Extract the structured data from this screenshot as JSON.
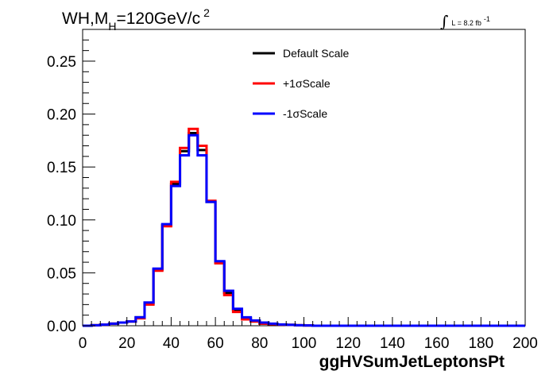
{
  "chart_data": {
    "type": "line",
    "title": {
      "main": "WH,M",
      "sub": "H",
      "rest": "=120GeV/c",
      "sup": "2"
    },
    "luminosity": {
      "integral_symbol": "∫",
      "label": "L = 8.2 fb",
      "sup": "-1"
    },
    "xlabel": "ggHVSumJetLeptonsPt",
    "ylabel": "",
    "xlim": [
      0,
      200
    ],
    "ylim": [
      0,
      0.28
    ],
    "x_ticks": [
      0,
      20,
      40,
      60,
      80,
      100,
      120,
      140,
      160,
      180,
      200
    ],
    "x_tick_labels": [
      "0",
      "20",
      "40",
      "60",
      "80",
      "100",
      "120",
      "140",
      "160",
      "180",
      "200"
    ],
    "y_ticks": [
      0,
      0.05,
      0.1,
      0.15,
      0.2,
      0.25
    ],
    "y_tick_labels": [
      "0.00",
      "0.05",
      "0.10",
      "0.15",
      "0.20",
      "0.25"
    ],
    "grid": false,
    "legend_position": "top-center",
    "bin_edges": [
      0,
      4,
      8,
      12,
      16,
      20,
      24,
      28,
      32,
      36,
      40,
      44,
      48,
      52,
      56,
      60,
      64,
      68,
      72,
      76,
      80,
      84,
      88,
      92,
      96,
      100,
      104,
      200
    ],
    "series": [
      {
        "name": "Default Scale",
        "color": "#000000",
        "values": [
          0.0,
          0.0005,
          0.001,
          0.002,
          0.003,
          0.004,
          0.008,
          0.021,
          0.053,
          0.095,
          0.134,
          0.165,
          0.182,
          0.166,
          0.117,
          0.06,
          0.031,
          0.015,
          0.007,
          0.004,
          0.002,
          0.0015,
          0.001,
          0.0008,
          0.0005,
          0.0003,
          0.0
        ]
      },
      {
        "name": "+1σScale",
        "color": "#ff0000",
        "values": [
          0.0,
          0.0005,
          0.001,
          0.002,
          0.003,
          0.004,
          0.007,
          0.02,
          0.052,
          0.094,
          0.136,
          0.168,
          0.186,
          0.17,
          0.118,
          0.059,
          0.029,
          0.013,
          0.006,
          0.004,
          0.002,
          0.0015,
          0.001,
          0.0008,
          0.0005,
          0.0003,
          0.0
        ]
      },
      {
        "name": "-1σScale",
        "color": "#0000ff",
        "values": [
          0.0,
          0.0005,
          0.001,
          0.002,
          0.003,
          0.004,
          0.008,
          0.022,
          0.054,
          0.096,
          0.132,
          0.161,
          0.18,
          0.161,
          0.117,
          0.061,
          0.033,
          0.016,
          0.008,
          0.005,
          0.003,
          0.002,
          0.0012,
          0.0008,
          0.0005,
          0.0003,
          0.0
        ]
      }
    ]
  }
}
